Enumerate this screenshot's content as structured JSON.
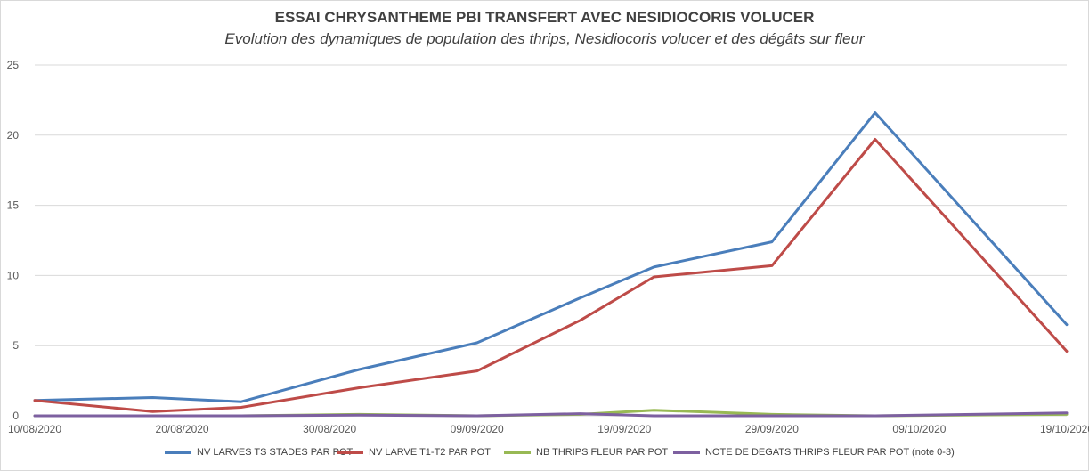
{
  "chart_data": {
    "type": "line",
    "title": "ESSAI CHRYSANTHEME PBI TRANSFERT AVEC NESIDIOCORIS VOLUCER",
    "subtitle": "Evolution des dynamiques de population des thrips, Nesidiocoris volucer et des dégâts sur fleur",
    "xlabel": "",
    "ylabel": "",
    "ylim": [
      0,
      25
    ],
    "yticks": [
      "0",
      "5",
      "10",
      "15",
      "20",
      "25"
    ],
    "xlim": [
      "10/08/2020",
      "19/10/2020"
    ],
    "xticks": [
      "10/08/2020",
      "20/08/2020",
      "30/08/2020",
      "09/09/2020",
      "19/09/2020",
      "29/09/2020",
      "09/10/2020",
      "19/10/2020"
    ],
    "grid": true,
    "legend_position": "bottom",
    "x": [
      "10/08/2020",
      "18/08/2020",
      "24/08/2020",
      "01/09/2020",
      "09/09/2020",
      "16/09/2020",
      "21/09/2020",
      "29/09/2020",
      "06/10/2020",
      "19/10/2020"
    ],
    "series": [
      {
        "name": "NV  LARVES TS STADES PAR POT",
        "color": "#4a7ebb",
        "values": [
          1.1,
          1.3,
          1.0,
          3.3,
          5.2,
          8.4,
          10.6,
          12.4,
          21.6,
          6.5
        ]
      },
      {
        "name": "NV LARVE T1-T2 PAR POT",
        "color": "#be4b48",
        "values": [
          1.1,
          0.3,
          0.6,
          2.0,
          3.2,
          6.8,
          9.9,
          10.7,
          19.7,
          4.6
        ]
      },
      {
        "name": "NB THRIPS FLEUR PAR POT",
        "color": "#98b954",
        "values": [
          0.0,
          0.0,
          0.0,
          0.1,
          0.0,
          0.1,
          0.4,
          0.1,
          0.0,
          0.1
        ]
      },
      {
        "name": "NOTE DE DEGATS THRIPS FLEUR PAR POT (note 0-3)",
        "color": "#7d60a0",
        "values": [
          0.0,
          0.0,
          0.0,
          0.05,
          0.0,
          0.15,
          0.0,
          0.0,
          0.0,
          0.2
        ]
      }
    ]
  }
}
